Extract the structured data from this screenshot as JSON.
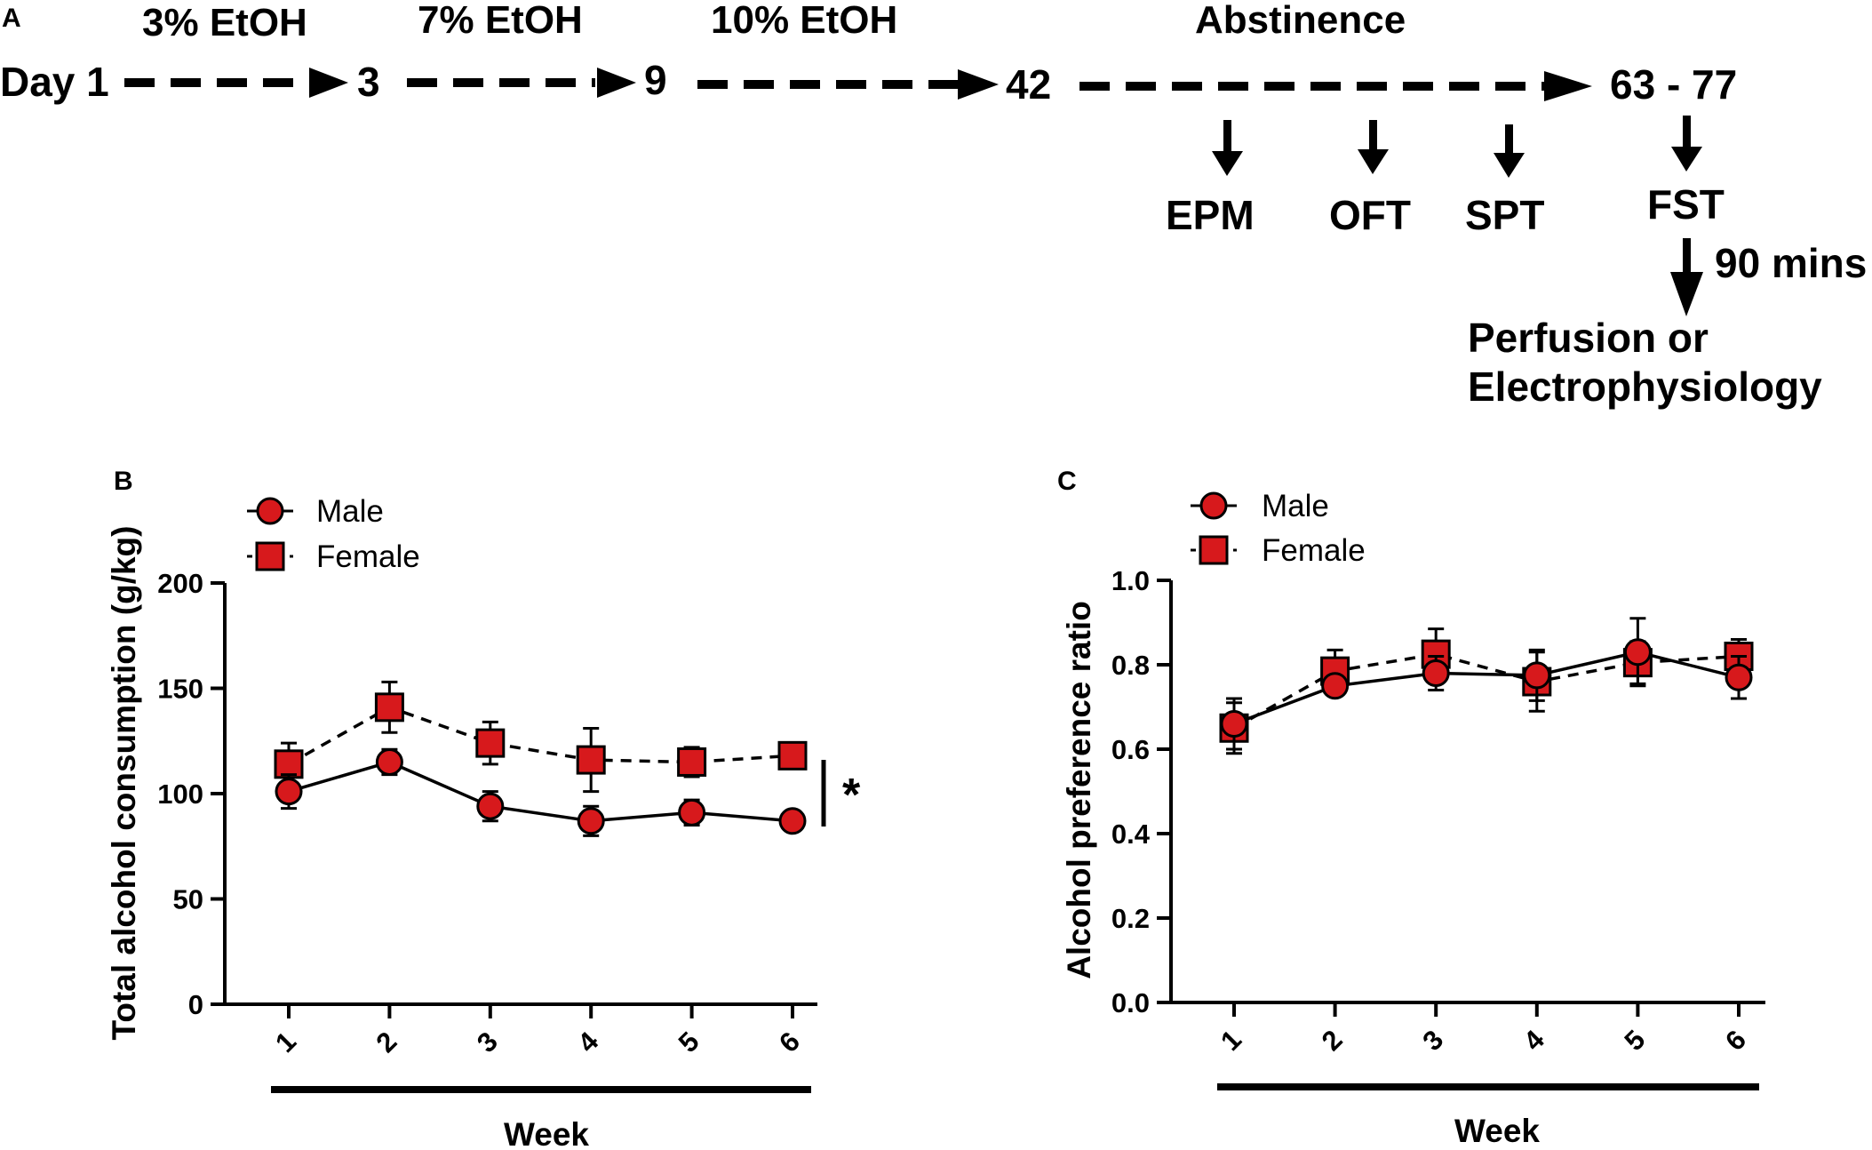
{
  "panel_a": {
    "letter": "A",
    "days": [
      "Day 1",
      "3",
      "9",
      "42",
      "63 - 77"
    ],
    "stages": [
      "3% EtOH",
      "7% EtOH",
      "10% EtOH",
      "Abstinence"
    ],
    "tests": [
      "EPM",
      "OFT",
      "SPT",
      "FST"
    ],
    "delay": "90 mins",
    "endpoint_line1": "Perfusion or",
    "endpoint_line2": "Electrophysiology"
  },
  "colors": {
    "marker_fill": "#d7191c",
    "marker_stroke": "#000000",
    "axis": "#000000"
  },
  "chart_data": [
    {
      "panel": "B",
      "type": "line",
      "title": "",
      "xlabel": "Week",
      "ylabel": "Total alcohol consumption (g/kg)",
      "categories": [
        "1",
        "2",
        "3",
        "4",
        "5",
        "6"
      ],
      "ylim": [
        0,
        200
      ],
      "yticks": [
        0,
        50,
        100,
        150,
        200
      ],
      "ytick_labels": [
        "0",
        "50",
        "100",
        "150",
        "200"
      ],
      "legend_position": "top-left",
      "significance": "*",
      "series": [
        {
          "name": "Male",
          "marker": "circle",
          "line": "solid",
          "values": [
            101,
            115,
            94,
            87,
            91,
            87
          ],
          "errors": [
            8,
            6,
            7,
            7,
            6,
            4
          ]
        },
        {
          "name": "Female",
          "marker": "square",
          "line": "dashed",
          "values": [
            114,
            141,
            124,
            116,
            115,
            118
          ],
          "errors": [
            10,
            12,
            10,
            15,
            7,
            6
          ]
        }
      ]
    },
    {
      "panel": "C",
      "type": "line",
      "title": "",
      "xlabel": "Week",
      "ylabel": "Alcohol preference ratio",
      "categories": [
        "1",
        "2",
        "3",
        "4",
        "5",
        "6"
      ],
      "ylim": [
        0,
        1.0
      ],
      "yticks": [
        0,
        0.2,
        0.4,
        0.6,
        0.8,
        1.0
      ],
      "ytick_labels": [
        "0.0",
        "0.2",
        "0.4",
        "0.6",
        "0.8",
        "1.0"
      ],
      "legend_position": "top-left",
      "series": [
        {
          "name": "Male",
          "marker": "circle",
          "line": "solid",
          "values": [
            0.66,
            0.75,
            0.78,
            0.775,
            0.83,
            0.77
          ],
          "errors": [
            0.06,
            0.02,
            0.04,
            0.06,
            0.08,
            0.05
          ]
        },
        {
          "name": "Female",
          "marker": "square",
          "line": "dashed",
          "values": [
            0.65,
            0.785,
            0.825,
            0.76,
            0.805,
            0.82
          ],
          "errors": [
            0.06,
            0.05,
            0.06,
            0.07,
            0.05,
            0.04
          ]
        }
      ]
    }
  ]
}
